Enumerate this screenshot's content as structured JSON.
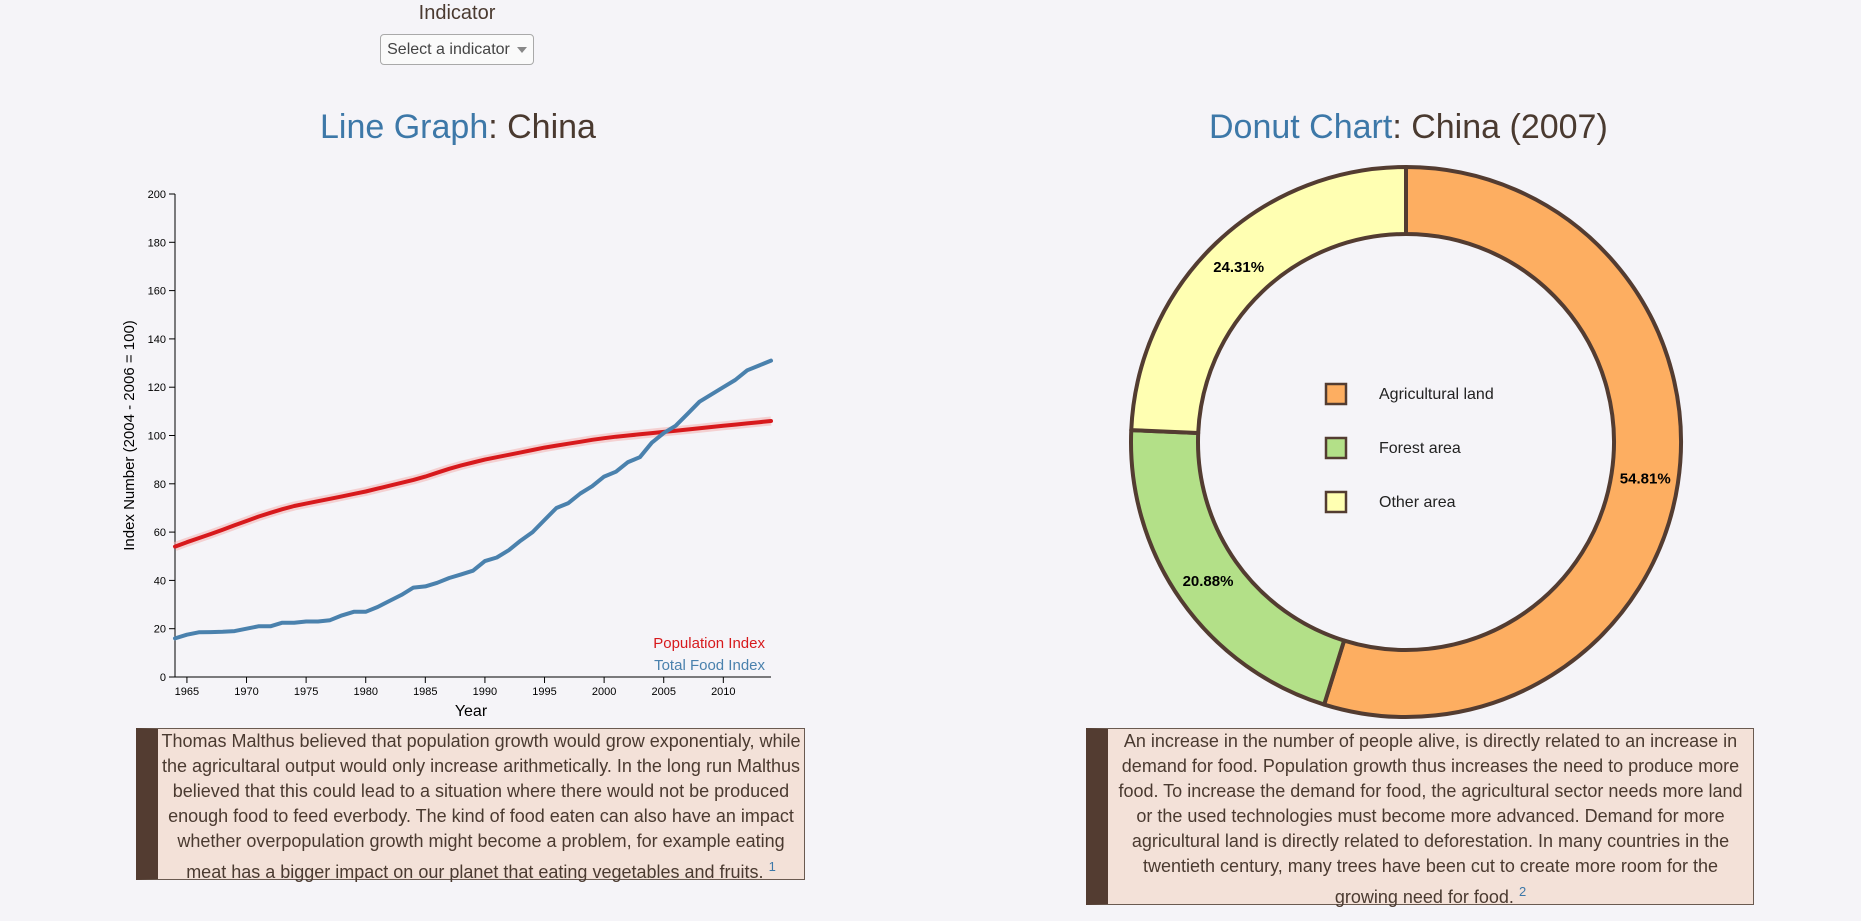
{
  "indicator": {
    "label": "Indicator",
    "select_value": "Select a indicator"
  },
  "line_panel": {
    "title_accent": "Line Graph",
    "title_rest": ": China"
  },
  "donut_panel": {
    "title_accent": "Donut Chart",
    "title_rest": ": China (2007)"
  },
  "text_left": {
    "body": "Thomas Malthus believed that population growth would grow exponentialy, while the agricultaral output would only increase arithmetically. In the long run Malthus believed that this could lead to a situation where there would not be produced enough food to feed everbody. The kind of food eaten can also have an impact whether overpopulation growth might become a problem, for example eating meat has a bigger impact on our planet that eating vegetables and fruits.",
    "footnote": "1"
  },
  "text_right": {
    "body": "An increase in the number of people alive, is directly related to an increase in demand for food. Population growth thus increases the need to produce more food. To increase the demand for food, the agricultural sector needs more land or the used technologies must become more advanced. Demand for more agricultural land is directly related to deforestation. In many countries in the twentieth century, many trees have been cut to create more room for the growing need for food.",
    "footnote": "2"
  },
  "chart_data": [
    {
      "type": "line",
      "title": "",
      "xlabel": "Year",
      "ylabel": "Index Number (2004 - 2006 = 100)",
      "xlim": [
        1964,
        2014
      ],
      "ylim": [
        0,
        200
      ],
      "x_ticks": [
        1965,
        1970,
        1975,
        1980,
        1985,
        1990,
        1995,
        2000,
        2005,
        2010
      ],
      "y_ticks": [
        0,
        20,
        40,
        60,
        80,
        100,
        120,
        140,
        160,
        180,
        200
      ],
      "grid": false,
      "legend_position": "bottom-right",
      "x": [
        1964,
        1965,
        1966,
        1967,
        1968,
        1969,
        1970,
        1971,
        1972,
        1973,
        1974,
        1975,
        1976,
        1977,
        1978,
        1979,
        1980,
        1981,
        1982,
        1983,
        1984,
        1985,
        1986,
        1987,
        1988,
        1989,
        1990,
        1991,
        1992,
        1993,
        1994,
        1995,
        1996,
        1997,
        1998,
        1999,
        2000,
        2001,
        2002,
        2003,
        2004,
        2005,
        2006,
        2007,
        2008,
        2009,
        2010,
        2011,
        2012,
        2013,
        2014
      ],
      "series": [
        {
          "name": "Population Index",
          "color": "#d7191c",
          "values": [
            54,
            55.8,
            57.5,
            59.2,
            61,
            62.8,
            64.6,
            66.4,
            68,
            69.5,
            70.8,
            71.8,
            72.8,
            73.8,
            74.8,
            75.8,
            76.8,
            78,
            79.2,
            80.4,
            81.6,
            83,
            84.6,
            86.2,
            87.6,
            88.8,
            90,
            91,
            92,
            93,
            94,
            95,
            95.8,
            96.6,
            97.4,
            98.2,
            98.9,
            99.5,
            100,
            100.5,
            101,
            101.5,
            102,
            102.5,
            103,
            103.5,
            104,
            104.5,
            105,
            105.5,
            106
          ]
        },
        {
          "name": "Total Food Index",
          "color": "#4a81ad",
          "values": [
            16,
            17.5,
            18.5,
            18.6,
            18.7,
            19,
            20,
            21,
            21,
            22.5,
            22.5,
            23,
            23,
            23.5,
            25.5,
            27,
            27,
            29,
            31.5,
            34,
            37,
            37.5,
            39,
            41,
            42.5,
            44,
            48,
            49.5,
            52.5,
            56.5,
            60,
            65,
            70,
            72,
            76,
            79,
            83,
            85,
            89,
            91,
            97,
            101,
            104,
            109,
            114,
            117,
            120,
            123,
            127,
            129,
            131
          ]
        }
      ]
    },
    {
      "type": "pie",
      "title": "",
      "donut": true,
      "legend_position": "center",
      "slices": [
        {
          "label": "Agricultural land",
          "value": 54.81,
          "display": "54.81%",
          "color": "#fdae61"
        },
        {
          "label": "Forest area",
          "value": 20.88,
          "display": "20.88%",
          "color": "#b3e088"
        },
        {
          "label": "Other area",
          "value": 24.31,
          "display": "24.31%",
          "color": "#ffffb2"
        }
      ]
    }
  ]
}
